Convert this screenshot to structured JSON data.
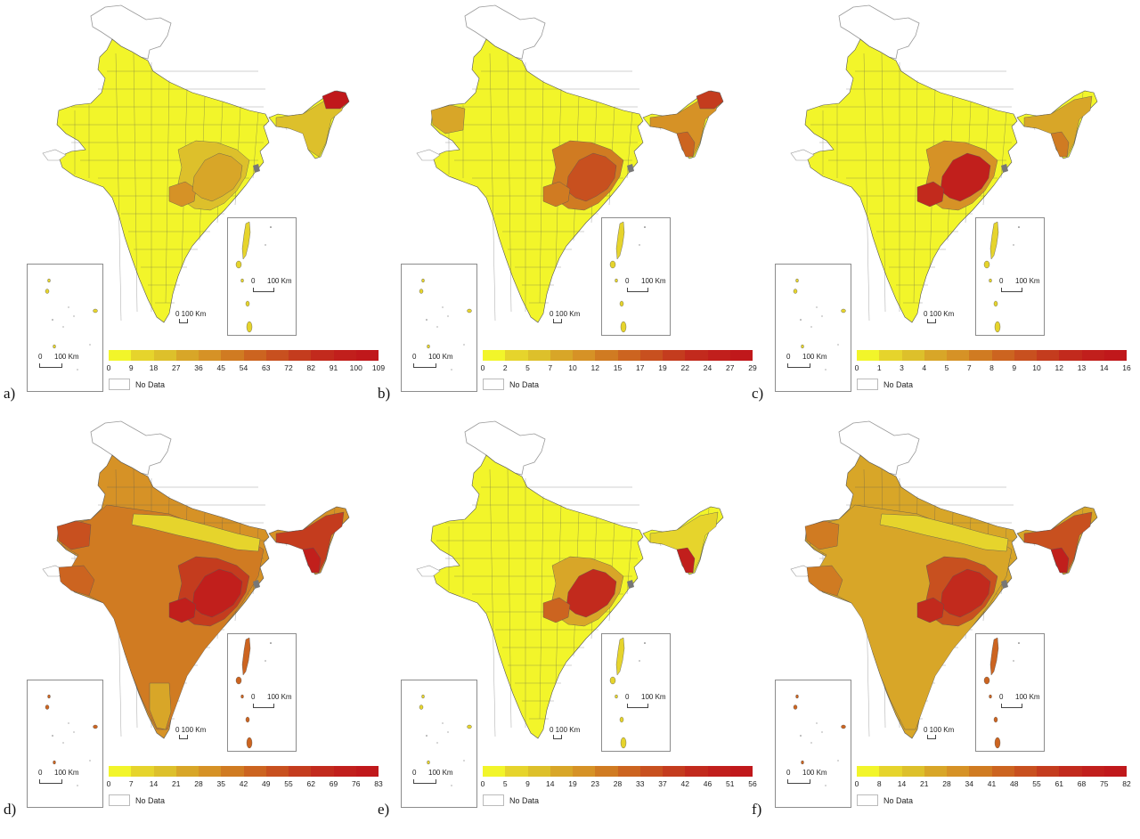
{
  "figure": {
    "panel_labels": [
      "a)",
      "b)",
      "c)",
      "d)",
      "e)",
      "f)"
    ],
    "no_data_label": "No Data",
    "main_scale_label": "0 100 Km",
    "inset_scale_label_zero": "0",
    "inset_scale_label_dist": "100 Km"
  },
  "legend_colors": [
    "#f2f52a",
    "#e6d42c",
    "#ddc02b",
    "#d8a628",
    "#d69226",
    "#d07b22",
    "#cc6420",
    "#c8501f",
    "#c43c1e",
    "#c22a1d",
    "#c11f1c",
    "#c0181b"
  ],
  "colors": {
    "yellow": "#f2f52a",
    "light_amber": "#e2c82c",
    "amber": "#d99a27",
    "orange": "#cf7322",
    "dark_orange": "#c8501f",
    "red": "#c22a1d",
    "deep_red": "#c0181b",
    "no_data": "#ffffff",
    "border": "#555555"
  },
  "chart_data": [
    {
      "type": "heatmap",
      "panel": "a)",
      "title": "",
      "legend_ticks": [
        "0",
        "9",
        "18",
        "27",
        "36",
        "45",
        "54",
        "63",
        "72",
        "82",
        "91",
        "100",
        "109"
      ],
      "range": [
        0,
        109
      ],
      "hotspots": [
        "far north-east (Arunachal) – highest (~100-109)",
        "central-east (Chhattisgarh/Odisha) – moderate (~27-54)"
      ],
      "base_level": "0-9 across most districts"
    },
    {
      "type": "heatmap",
      "panel": "b)",
      "title": "",
      "legend_ticks": [
        "0",
        "2",
        "5",
        "7",
        "10",
        "12",
        "15",
        "17",
        "19",
        "22",
        "24",
        "27",
        "29"
      ],
      "range": [
        0,
        29
      ],
      "hotspots": [
        "central-east (Jharkhand/Chhattisgarh/Odisha) – high (~17-29)",
        "north-east – high (~19-29)",
        "west Rajasthan – low-moderate (~5-7)"
      ],
      "base_level": "0-2 across most districts"
    },
    {
      "type": "heatmap",
      "panel": "c)",
      "title": "",
      "legend_ticks": [
        "0",
        "1",
        "3",
        "4",
        "5",
        "7",
        "8",
        "9",
        "10",
        "12",
        "13",
        "14",
        "16"
      ],
      "range": [
        0,
        16
      ],
      "hotspots": [
        "central-east (Odisha/Chhattisgarh) – highest (~12-16)",
        "north-east (Assam/Mizoram) – moderate (~5-10)"
      ],
      "base_level": "0-1 across most districts"
    },
    {
      "type": "heatmap",
      "panel": "d)",
      "title": "",
      "legend_ticks": [
        "0",
        "7",
        "14",
        "21",
        "28",
        "35",
        "42",
        "49",
        "55",
        "62",
        "69",
        "76",
        "83"
      ],
      "range": [
        0,
        83
      ],
      "hotspots": [
        "central-east (Odisha/Chhattisgarh) – highest (~69-83)",
        "north-east – high (~62-83)",
        "most of India – moderate (~35-55)"
      ],
      "base_level": "Gangetic plain lower (~7-28)"
    },
    {
      "type": "heatmap",
      "panel": "e)",
      "title": "",
      "legend_ticks": [
        "0",
        "5",
        "9",
        "14",
        "19",
        "23",
        "28",
        "33",
        "37",
        "42",
        "46",
        "51",
        "56"
      ],
      "range": [
        0,
        56
      ],
      "hotspots": [
        "central-east (Odisha) – high (~37-56)",
        "north-east (Tripura/Mizoram) – high (~46-56)"
      ],
      "base_level": "0-5 across most districts"
    },
    {
      "type": "heatmap",
      "panel": "f)",
      "title": "",
      "legend_ticks": [
        "0",
        "8",
        "14",
        "21",
        "28",
        "34",
        "41",
        "48",
        "55",
        "61",
        "68",
        "75",
        "82"
      ],
      "range": [
        0,
        82
      ],
      "hotspots": [
        "central-east (Odisha/Chhattisgarh) – highest (~61-82)",
        "north-east – high (~61-82)",
        "west and south – moderate (~21-41)"
      ],
      "base_level": "north India lower (~0-21)"
    }
  ]
}
